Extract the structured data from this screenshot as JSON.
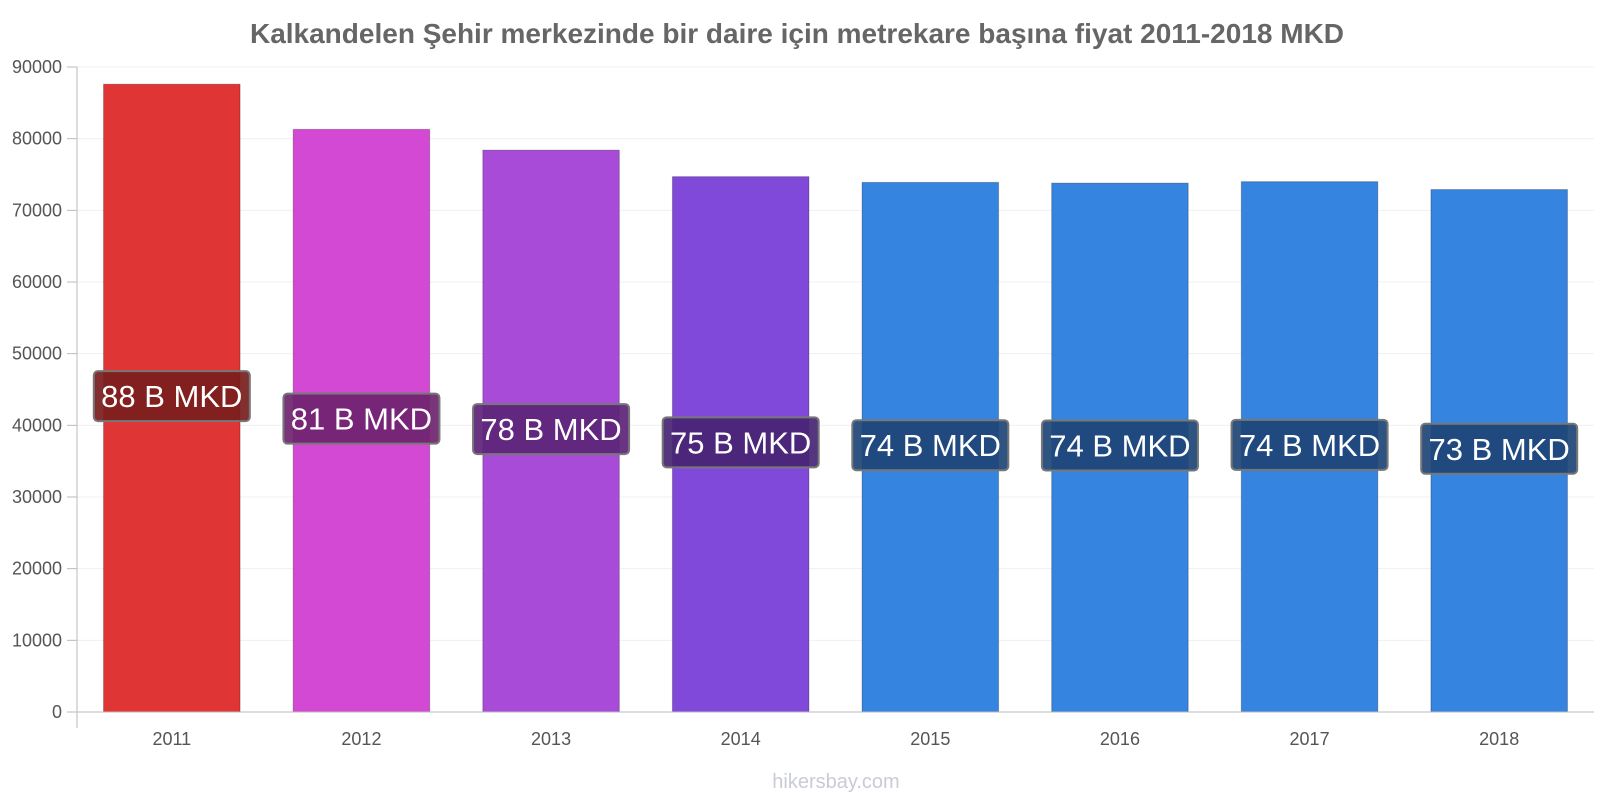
{
  "chart_data": {
    "type": "bar",
    "title": "Kalkandelen Şehir merkezinde bir daire için metrekare başına fiyat 2011-2018 MKD",
    "categories": [
      "2011",
      "2012",
      "2013",
      "2014",
      "2015",
      "2016",
      "2017",
      "2018"
    ],
    "values": [
      87600,
      81300,
      78400,
      74700,
      73900,
      73800,
      74000,
      72900
    ],
    "data_labels": [
      "88 B MKD",
      "81 B MKD",
      "78 B MKD",
      "75 B MKD",
      "74 B MKD",
      "74 B MKD",
      "74 B MKD",
      "73 B MKD"
    ],
    "colors": [
      "#e03535",
      "#d449d4",
      "#a84bd9",
      "#8149d9",
      "#3584e0",
      "#3584e0",
      "#3584e0",
      "#3584e0"
    ],
    "label_box_colors": [
      "#7a1d1d",
      "#6f236f",
      "#5c2477",
      "#472473",
      "#1e4576",
      "#1e4576",
      "#1e4576",
      "#1e4576"
    ],
    "ylim": [
      0,
      90000
    ],
    "yticks": [
      0,
      10000,
      20000,
      30000,
      40000,
      50000,
      60000,
      70000,
      80000,
      90000
    ],
    "grid": true,
    "xlabel": "",
    "ylabel": ""
  },
  "watermark": "hikersbay.com"
}
